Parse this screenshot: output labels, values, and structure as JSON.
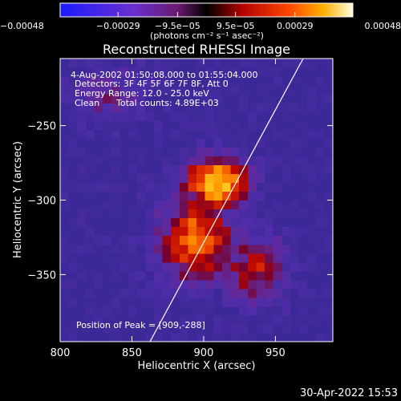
{
  "chart_data": {
    "type": "heatmap",
    "title": "Reconstructed RHESSI Image",
    "xlabel": "Heliocentric X (arcsec)",
    "ylabel": "Heliocentric Y (arcsec)",
    "xlim": [
      800,
      990
    ],
    "ylim": [
      -395,
      -205
    ],
    "x_ticks": [
      800,
      850,
      900,
      950
    ],
    "y_ticks": [
      -250,
      -300,
      -350
    ],
    "x_tick_labels": [
      "800",
      "850",
      "900",
      "950"
    ],
    "y_tick_labels": [
      "−250",
      "−300",
      "−350"
    ],
    "peak": {
      "x": 909,
      "y": -288
    },
    "colorbar": {
      "min": -0.00048,
      "max": 0.00048,
      "tick_values": [
        -0.00048,
        -0.00029,
        -9.5e-05,
        9.5e-05,
        0.00029,
        0.00048
      ],
      "tick_labels": [
        "−0.00048",
        "−0.00029",
        "−9.5e−05",
        "9.5e−05",
        "0.00029",
        "0.00048"
      ],
      "units": "(photons cm⁻² s⁻¹ asec⁻²)"
    },
    "annotations": {
      "time_range": "4-Aug-2002 01:50:08.000 to 01:55:04.000",
      "detectors": "Detectors: 3F 4F 5F 6F 7F 8F, Att 0",
      "energy": "Energy Range: 12.0 - 25.0 keV",
      "clean": "Clean",
      "counts": "Total counts: 4.89E+03",
      "peak_label": "Position of Peak = [909,-288]"
    },
    "grid": false
  },
  "footer": {
    "timestamp": "30-Apr-2022 15:53"
  }
}
